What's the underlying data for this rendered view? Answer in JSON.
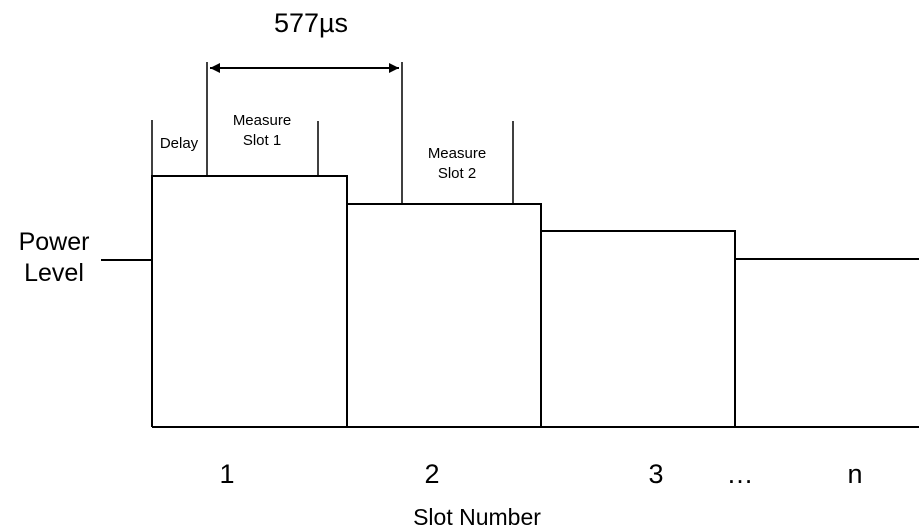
{
  "duration_label": "577µs",
  "delay_label": "Delay",
  "measure_slot_1": [
    "Measure",
    "Slot 1"
  ],
  "measure_slot_2": [
    "Measure",
    "Slot 2"
  ],
  "power_level_label": [
    "Power",
    "Level"
  ],
  "slot_labels": [
    "1",
    "2",
    "3",
    "…",
    "n"
  ],
  "x_axis_label": "Slot Number"
}
